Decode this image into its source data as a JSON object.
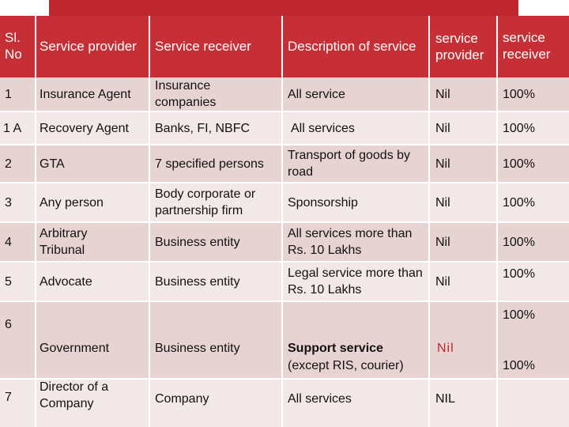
{
  "header": {
    "sl_no": "Sl. No",
    "service_provider": "Service provider",
    "service_receiver": "Service receiver",
    "description": "Description of service",
    "provider_share": "service provider",
    "receiver_share": "service receiver"
  },
  "rows": [
    {
      "sl": "1",
      "provider": "Insurance Agent",
      "receiver": "Insurance companies",
      "description": "All service",
      "provider_pct": "Nil",
      "receiver_pct": "100%"
    },
    {
      "sl": "1 A",
      "provider": "Recovery Agent",
      "receiver": "Banks, FI, NBFC",
      "description": "All services",
      "provider_pct": "Nil",
      "receiver_pct": "100%"
    },
    {
      "sl": "2",
      "provider": "GTA",
      "receiver": "7 specified persons",
      "description": "Transport of goods by road",
      "provider_pct": "Nil",
      "receiver_pct": "100%"
    },
    {
      "sl": "3",
      "provider": "Any person",
      "receiver": "Body corporate or partnership firm",
      "description": "Sponsorship",
      "provider_pct": "Nil",
      "receiver_pct": "100%"
    },
    {
      "sl": "4",
      "provider": "Arbitrary Tribunal",
      "receiver": "Business entity",
      "description": "All services more than Rs. 10 Lakhs",
      "provider_pct": "Nil",
      "receiver_pct": "100%"
    },
    {
      "sl": "5",
      "provider": "Advocate",
      "receiver": "Business entity",
      "description": "Legal service more than Rs. 10 Lakhs",
      "provider_pct": "Nil",
      "receiver_pct": "100%"
    },
    {
      "sl": "6",
      "provider": "Government",
      "receiver": "Business entity",
      "description_main": "Support service",
      "description_note": "(except RIS, courier)",
      "provider_pct": "Nil",
      "receiver_pct_top": "100%",
      "receiver_pct": "100%"
    },
    {
      "sl": "7",
      "provider": "Director of a Company",
      "receiver": "Company",
      "description": "All services",
      "provider_pct": "NIL"
    }
  ],
  "colors": {
    "header_bg": "#c62f35",
    "band_dark": "#e8d3d3",
    "band_light": "#f3e8e8",
    "accent_red": "#c0262f"
  }
}
